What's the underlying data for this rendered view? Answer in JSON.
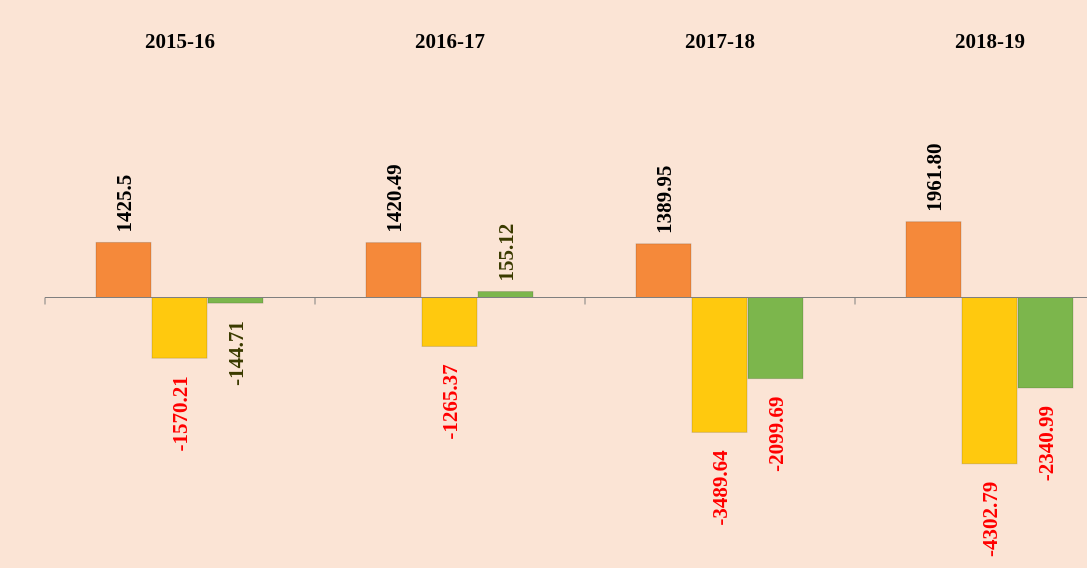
{
  "chart_data": {
    "type": "bar",
    "categories": [
      "2015-16",
      "2016-17",
      "2017-18",
      "2018-19"
    ],
    "series": [
      {
        "color": "#f5893a",
        "values": [
          1425.5,
          1420.49,
          1389.95,
          1961.8
        ],
        "value_labels": [
          "1425.5",
          "1420.49",
          "1389.95",
          "1961.80"
        ],
        "label_colors": [
          "#000000",
          "#000000",
          "#000000",
          "#000000"
        ]
      },
      {
        "color": "#ffc90e",
        "values": [
          -1570.21,
          -1265.37,
          -3489.64,
          -4302.79
        ],
        "label_colors": [
          "#ff0000",
          "#ff0000",
          "#ff0000",
          "#ff0000"
        ]
      },
      {
        "color": "#7cb64c",
        "values": [
          -144.71,
          155.12,
          -2099.69,
          -2340.99
        ],
        "label_colors": [
          "#3b3b00",
          "#3b3b00",
          "#ff0000",
          "#ff0000"
        ]
      }
    ],
    "ylim": [
      -7000,
      7700
    ]
  }
}
